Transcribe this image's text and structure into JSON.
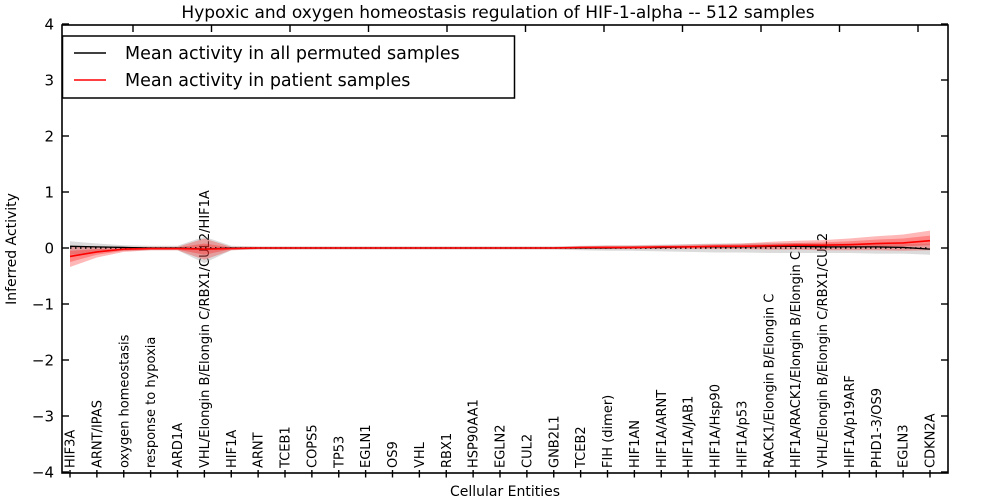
{
  "chart_data": {
    "type": "line",
    "title": "Hypoxic and oxygen homeostasis regulation of HIF-1-alpha -- 512 samples",
    "xlabel": "Cellular Entities",
    "ylabel": "Inferred Activity",
    "ylim": [
      -4,
      4
    ],
    "yticks": [
      4,
      3,
      2,
      1,
      0,
      -1,
      -2,
      -3,
      -4
    ],
    "grid": false,
    "legend_position": "upper left",
    "zero_reference_line": true,
    "categories": [
      "HIF3A",
      "ARNT/IPAS",
      "oxygen homeostasis",
      "response to hypoxia",
      "ARD1A",
      "VHL/Elongin B/Elongin C/RBX1/CUL2/HIF1A",
      "HIF1A",
      "ARNT",
      "TCEB1",
      "COPS5",
      "TP53",
      "EGLN1",
      "OS9",
      "VHL",
      "RBX1",
      "HSP90AA1",
      "EGLN2",
      "CUL2",
      "GNB2L1",
      "TCEB2",
      "FIH (dimer)",
      "HIF1AN",
      "HIF1A/ARNT",
      "HIF1A/JAB1",
      "HIF1A/Hsp90",
      "HIF1A/p53",
      "RACK1/Elongin B/Elongin C",
      "HIF1A/RACK1/Elongin B/Elongin C",
      "VHL/Elongin B/Elongin C/RBX1/CUL2",
      "HIF1A/p19ARF",
      "PHD1-3/OS9",
      "EGLN3",
      "CDKN2A"
    ],
    "series": [
      {
        "name": "Mean activity in all permuted samples",
        "color": "#000000",
        "style": "solid",
        "values": [
          0.03,
          0.02,
          0.01,
          0.0,
          0.0,
          -0.02,
          0.0,
          0.0,
          0.0,
          0.0,
          0.0,
          0.0,
          0.0,
          0.0,
          0.0,
          0.0,
          0.0,
          0.0,
          0.0,
          0.0,
          0.0,
          0.01,
          0.01,
          0.02,
          0.02,
          0.02,
          0.03,
          0.03,
          0.02,
          0.02,
          0.02,
          0.01,
          -0.02
        ]
      },
      {
        "name": "Mean activity in patient samples",
        "color": "#ff0000",
        "style": "solid",
        "values": [
          -0.15,
          -0.07,
          -0.02,
          -0.01,
          -0.01,
          -0.02,
          -0.01,
          0.0,
          0.0,
          0.0,
          0.0,
          0.0,
          0.0,
          0.0,
          0.0,
          0.0,
          0.0,
          0.0,
          0.0,
          0.01,
          0.01,
          0.01,
          0.02,
          0.02,
          0.03,
          0.03,
          0.04,
          0.05,
          0.05,
          0.06,
          0.08,
          0.09,
          0.13
        ]
      }
    ],
    "bands": [
      {
        "name": "permuted-samples-spread",
        "color": "#999999",
        "opacity": 0.35,
        "upper": [
          0.12,
          0.08,
          0.05,
          0.04,
          0.04,
          0.2,
          0.04,
          0.03,
          0.03,
          0.03,
          0.03,
          0.03,
          0.03,
          0.03,
          0.03,
          0.03,
          0.03,
          0.03,
          0.03,
          0.04,
          0.05,
          0.05,
          0.06,
          0.07,
          0.08,
          0.08,
          0.09,
          0.09,
          0.08,
          0.08,
          0.07,
          0.07,
          0.08
        ],
        "lower": [
          -0.12,
          -0.08,
          -0.05,
          -0.04,
          -0.04,
          -0.27,
          -0.04,
          -0.03,
          -0.03,
          -0.03,
          -0.03,
          -0.03,
          -0.03,
          -0.03,
          -0.03,
          -0.03,
          -0.03,
          -0.03,
          -0.03,
          -0.04,
          -0.05,
          -0.05,
          -0.06,
          -0.07,
          -0.08,
          -0.08,
          -0.09,
          -0.09,
          -0.09,
          -0.09,
          -0.1,
          -0.1,
          -0.12
        ]
      },
      {
        "name": "patient-samples-spread-outer",
        "color": "#ff0000",
        "opacity": 0.28,
        "upper": [
          0.04,
          0.03,
          0.02,
          0.02,
          0.02,
          0.17,
          0.02,
          0.02,
          0.02,
          0.02,
          0.02,
          0.02,
          0.02,
          0.02,
          0.02,
          0.02,
          0.02,
          0.02,
          0.02,
          0.03,
          0.04,
          0.04,
          0.05,
          0.06,
          0.07,
          0.08,
          0.11,
          0.13,
          0.14,
          0.17,
          0.21,
          0.24,
          0.31
        ],
        "lower": [
          -0.34,
          -0.17,
          -0.07,
          -0.04,
          -0.04,
          -0.21,
          -0.04,
          -0.02,
          -0.02,
          -0.02,
          -0.02,
          -0.02,
          -0.02,
          -0.02,
          -0.02,
          -0.02,
          -0.02,
          -0.02,
          -0.02,
          -0.02,
          -0.02,
          -0.02,
          -0.02,
          -0.02,
          -0.02,
          -0.02,
          -0.03,
          -0.03,
          -0.04,
          -0.04,
          -0.04,
          -0.05,
          -0.04
        ]
      },
      {
        "name": "patient-samples-spread-inner",
        "color": "#ff0000",
        "opacity": 0.28,
        "upper": [
          -0.05,
          -0.02,
          0.0,
          0.01,
          0.01,
          0.08,
          0.01,
          0.01,
          0.01,
          0.01,
          0.01,
          0.01,
          0.01,
          0.01,
          0.01,
          0.01,
          0.01,
          0.01,
          0.01,
          0.02,
          0.02,
          0.03,
          0.03,
          0.04,
          0.05,
          0.06,
          0.07,
          0.09,
          0.1,
          0.12,
          0.15,
          0.17,
          0.22
        ],
        "lower": [
          -0.25,
          -0.12,
          -0.05,
          -0.03,
          -0.03,
          -0.12,
          -0.02,
          -0.01,
          -0.01,
          -0.01,
          -0.01,
          -0.01,
          -0.01,
          -0.01,
          -0.01,
          -0.01,
          -0.01,
          -0.01,
          -0.01,
          -0.01,
          -0.01,
          -0.01,
          0.0,
          0.0,
          0.01,
          0.01,
          0.01,
          0.02,
          0.02,
          0.02,
          0.03,
          0.03,
          0.05
        ]
      }
    ]
  }
}
